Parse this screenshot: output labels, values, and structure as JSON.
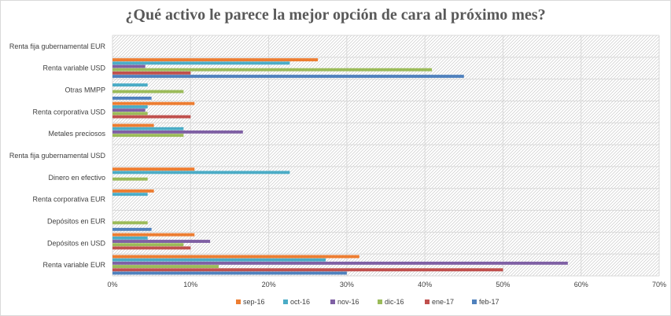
{
  "chart_data": {
    "type": "bar",
    "orientation": "horizontal",
    "title": "¿Qué activo le parece la mejor opción de cara al próximo mes?",
    "xlabel": "",
    "ylabel": "",
    "xlim": [
      0,
      70
    ],
    "xticks": [
      0,
      10,
      20,
      30,
      40,
      50,
      60,
      70
    ],
    "xtick_labels": [
      "0%",
      "10%",
      "20%",
      "30%",
      "40%",
      "50%",
      "60%",
      "70%"
    ],
    "grid": true,
    "legend_position": "bottom",
    "categories": [
      "Renta fija gubernamental EUR",
      "Renta variable USD",
      "Otras MMPP",
      "Renta corporativa USD",
      "Metales preciosos",
      "Renta fija gubernamental USD",
      "Dinero en efectivo",
      "Renta corporativa EUR",
      "Depósitos en EUR",
      "Depósitos en USD",
      "Renta variable EUR"
    ],
    "series": [
      {
        "name": "sep-16",
        "color": "#ED7D31",
        "values": [
          0,
          26.3,
          0,
          10.5,
          5.3,
          0,
          10.5,
          5.3,
          0,
          10.5,
          31.6
        ]
      },
      {
        "name": "oct-16",
        "color": "#4BACC6",
        "values": [
          0,
          22.7,
          4.5,
          4.5,
          9.1,
          0,
          22.7,
          4.5,
          0,
          4.5,
          27.3
        ]
      },
      {
        "name": "nov-16",
        "color": "#7F60A4",
        "values": [
          0,
          4.2,
          0,
          4.2,
          16.7,
          0,
          0,
          0,
          0,
          12.5,
          58.3
        ]
      },
      {
        "name": "dic-16",
        "color": "#9BBB59",
        "values": [
          0,
          40.9,
          9.1,
          4.5,
          9.1,
          0,
          4.5,
          0,
          4.5,
          9.1,
          13.6
        ]
      },
      {
        "name": "ene-17",
        "color": "#C0504D",
        "values": [
          0,
          10.0,
          0,
          10.0,
          0,
          0,
          0,
          0,
          0,
          10.0,
          50.0
        ]
      },
      {
        "name": "feb-17",
        "color": "#4F81BD",
        "values": [
          0,
          45.0,
          5.0,
          0,
          0,
          0,
          0,
          0,
          5.0,
          0,
          30.0
        ]
      }
    ]
  }
}
